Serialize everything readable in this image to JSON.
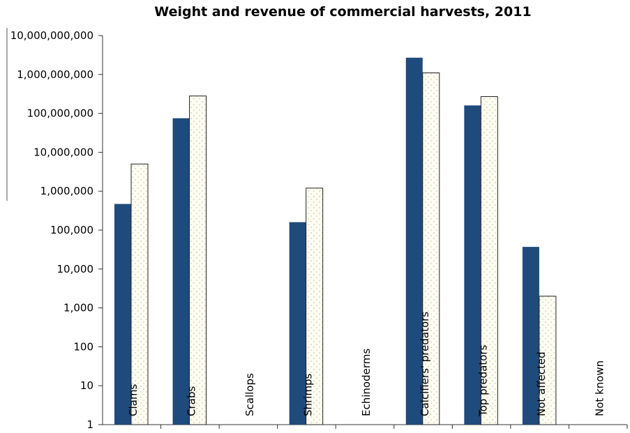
{
  "chart_data": {
    "type": "bar",
    "title": "Weight and revenue of commercial harvests, 2011",
    "xlabel": "",
    "ylabel": "",
    "scale": "log",
    "ylim": [
      1,
      10000000000
    ],
    "y_ticks": [
      "1",
      "10",
      "100",
      "1,000",
      "10,000",
      "100,000",
      "1,000,000",
      "10,000,000",
      "100,000,000",
      "1,000,000,000",
      "10,000,000,000"
    ],
    "categories": [
      "Clams",
      "Crabs",
      "Scallops",
      "Shrimps",
      "Echinoderms",
      "Calcifiers' predators",
      "Top predators",
      "Not affected",
      "Not known"
    ],
    "series": [
      {
        "fill": "solid",
        "color": "#1f4a7c",
        "values": [
          470000,
          75000000,
          null,
          160000,
          null,
          2700000000,
          160000000,
          37000,
          null
        ]
      },
      {
        "fill": "dotted",
        "color": "#fdfdf4",
        "values": [
          5000000,
          280000000,
          null,
          1200000,
          null,
          1100000000,
          270000000,
          2000,
          null
        ]
      }
    ],
    "legend": "none",
    "grid": false
  }
}
